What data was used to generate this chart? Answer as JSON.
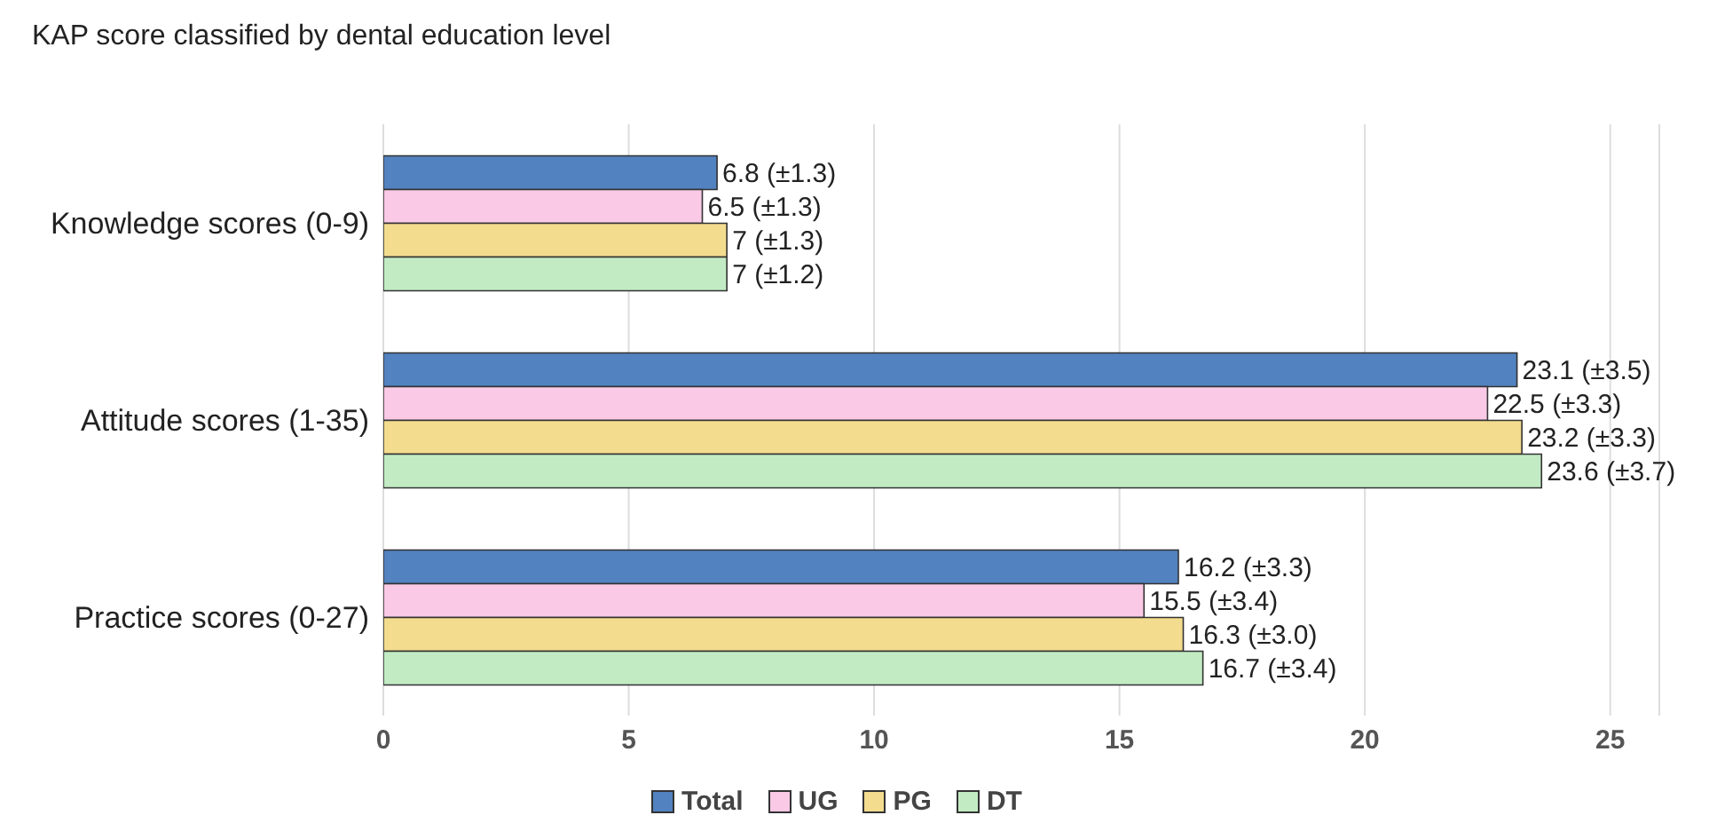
{
  "chart_data": {
    "type": "bar",
    "orientation": "horizontal",
    "title": "KAP score classified by dental education level",
    "categories": [
      "Knowledge scores (0-9)",
      "Attitude scores (1-35)",
      "Practice scores (0-27)"
    ],
    "series": [
      {
        "name": "Total",
        "color": "#5282bf",
        "values": [
          6.8,
          23.1,
          16.2
        ],
        "value_labels": [
          "6.8 (±1.3)",
          "23.1 (±3.5)",
          "16.2 (±3.3)"
        ]
      },
      {
        "name": "UG",
        "color": "#f9c9e6",
        "values": [
          6.5,
          22.5,
          15.5
        ],
        "value_labels": [
          "6.5 (±1.3)",
          "22.5 (±3.3)",
          "15.5 (±3.4)"
        ]
      },
      {
        "name": "PG",
        "color": "#f3dc8e",
        "values": [
          7,
          23.2,
          16.3
        ],
        "value_labels": [
          "7 (±1.3)",
          "23.2 (±3.3)",
          "16.3 (±3.0)"
        ]
      },
      {
        "name": "DT",
        "color": "#c2ebc4",
        "values": [
          7,
          23.6,
          16.7
        ],
        "value_labels": [
          "7 (±1.2)",
          "23.6 (±3.7)",
          "16.7 (±3.4)"
        ]
      }
    ],
    "xlim": [
      0,
      26
    ],
    "xticks": [
      0,
      5,
      10,
      15,
      20,
      25
    ],
    "grid": "x",
    "legend": "bottom"
  }
}
